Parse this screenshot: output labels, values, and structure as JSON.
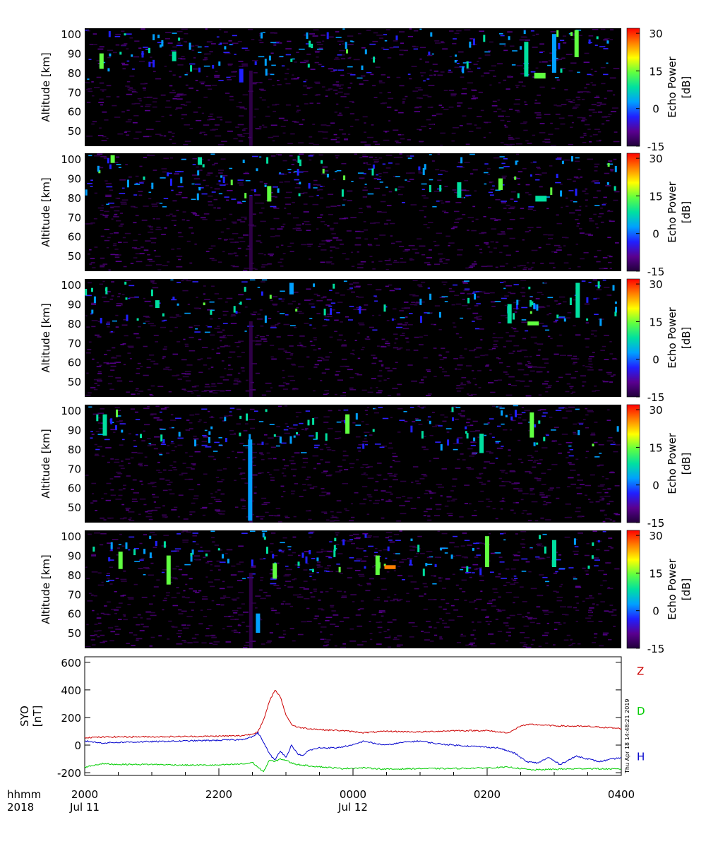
{
  "colorbar": {
    "ticks": [
      30,
      15,
      0,
      -15
    ],
    "range": [
      -15,
      32
    ],
    "label_line1": "Echo Power",
    "label_line2": "[dB]",
    "colors": [
      "#20003a",
      "#5a0090",
      "#2020ff",
      "#00a0ff",
      "#00e0a0",
      "#60ff40",
      "#ffff00",
      "#ff8000",
      "#ff0000"
    ]
  },
  "chart_data": [
    {
      "type": "heatmap",
      "ylabel": "Altitude  [km]",
      "yticks": [
        50,
        60,
        70,
        80,
        90,
        100
      ],
      "ylim": [
        42,
        103
      ],
      "xlim": [
        0,
        480
      ],
      "features": [
        {
          "t": 15,
          "alt": [
            82,
            90
          ],
          "db": 12
        },
        {
          "t": 80,
          "alt": [
            86,
            91
          ],
          "db": 8
        },
        {
          "t": 140,
          "alt": [
            75,
            82
          ],
          "db": -5
        },
        {
          "t": 395,
          "alt": [
            78,
            96
          ],
          "db": 8
        },
        {
          "t": 404,
          "alt": [
            77,
            80
          ],
          "db": 14
        },
        {
          "t": 420,
          "alt": [
            80,
            100
          ],
          "db": 5
        },
        {
          "t": 440,
          "alt": [
            88,
            102
          ],
          "db": 14
        }
      ]
    },
    {
      "type": "heatmap",
      "ylabel": "Altitude  [km]",
      "yticks": [
        50,
        60,
        70,
        80,
        90,
        100
      ],
      "ylim": [
        42,
        103
      ],
      "xlim": [
        0,
        480
      ],
      "features": [
        {
          "t": 25,
          "alt": [
            98,
            102
          ],
          "db": 12
        },
        {
          "t": 103,
          "alt": [
            97,
            101
          ],
          "db": 10
        },
        {
          "t": 165,
          "alt": [
            78,
            86
          ],
          "db": 15
        },
        {
          "t": 335,
          "alt": [
            80,
            88
          ],
          "db": 10
        },
        {
          "t": 372,
          "alt": [
            84,
            90
          ],
          "db": 12
        },
        {
          "t": 405,
          "alt": [
            78,
            81
          ],
          "db": 10
        }
      ]
    },
    {
      "type": "heatmap",
      "ylabel": "Altitude  [km]",
      "yticks": [
        50,
        60,
        70,
        80,
        90,
        100
      ],
      "ylim": [
        42,
        103
      ],
      "xlim": [
        0,
        480
      ],
      "features": [
        {
          "t": 65,
          "alt": [
            88,
            92
          ],
          "db": 6
        },
        {
          "t": 185,
          "alt": [
            95,
            101
          ],
          "db": 5
        },
        {
          "t": 380,
          "alt": [
            80,
            90
          ],
          "db": 6
        },
        {
          "t": 398,
          "alt": [
            79,
            81
          ],
          "db": 12
        },
        {
          "t": 441,
          "alt": [
            83,
            101
          ],
          "db": 10
        }
      ]
    },
    {
      "type": "heatmap",
      "ylabel": "Altitude  [km]",
      "yticks": [
        50,
        60,
        70,
        80,
        90,
        100
      ],
      "ylim": [
        42,
        103
      ],
      "xlim": [
        0,
        480
      ],
      "features": [
        {
          "t": 18,
          "alt": [
            87,
            98
          ],
          "db": 10
        },
        {
          "t": 148,
          "alt": [
            43,
            85
          ],
          "db": 2
        },
        {
          "t": 235,
          "alt": [
            88,
            98
          ],
          "db": 14
        },
        {
          "t": 355,
          "alt": [
            78,
            88
          ],
          "db": 10
        },
        {
          "t": 400,
          "alt": [
            86,
            99
          ],
          "db": 15
        }
      ]
    },
    {
      "type": "heatmap",
      "ylabel": "Altitude  [km]",
      "yticks": [
        50,
        60,
        70,
        80,
        90,
        100
      ],
      "ylim": [
        42,
        103
      ],
      "xlim": [
        0,
        480
      ],
      "features": [
        {
          "t": 32,
          "alt": [
            83,
            92
          ],
          "db": 14
        },
        {
          "t": 75,
          "alt": [
            75,
            90
          ],
          "db": 15
        },
        {
          "t": 155,
          "alt": [
            50,
            60
          ],
          "db": 3
        },
        {
          "t": 170,
          "alt": [
            78,
            86
          ],
          "db": 12
        },
        {
          "t": 262,
          "alt": [
            80,
            90
          ],
          "db": 12
        },
        {
          "t": 270,
          "alt": [
            83,
            85
          ],
          "db": 25
        },
        {
          "t": 360,
          "alt": [
            84,
            100
          ],
          "db": 12
        },
        {
          "t": 420,
          "alt": [
            84,
            98
          ],
          "db": 10
        }
      ]
    },
    {
      "type": "line",
      "ylabel_line1": "SYO",
      "ylabel_line2": "[nT]",
      "yticks": [
        600,
        400,
        200,
        0,
        -200
      ],
      "ylim": [
        -220,
        640
      ],
      "xlim": [
        0,
        480
      ],
      "xlabels": [
        {
          "t": 0,
          "hhmm": "2000",
          "date": "Jul 11"
        },
        {
          "t": 120,
          "hhmm": "2200",
          "date": ""
        },
        {
          "t": 240,
          "hhmm": "0000",
          "date": "Jul 12"
        },
        {
          "t": 360,
          "hhmm": "0200",
          "date": ""
        },
        {
          "t": 480,
          "hhmm": "0400",
          "date": ""
        }
      ],
      "series": [
        {
          "name": "Z",
          "color": "#cc0000",
          "label_y": 540,
          "points": [
            [
              0,
              55
            ],
            [
              30,
              60
            ],
            [
              60,
              60
            ],
            [
              90,
              62
            ],
            [
              120,
              65
            ],
            [
              140,
              68
            ],
            [
              150,
              80
            ],
            [
              155,
              100
            ],
            [
              160,
              180
            ],
            [
              165,
              310
            ],
            [
              170,
              400
            ],
            [
              175,
              350
            ],
            [
              180,
              220
            ],
            [
              185,
              150
            ],
            [
              190,
              130
            ],
            [
              200,
              120
            ],
            [
              215,
              110
            ],
            [
              230,
              105
            ],
            [
              250,
              90
            ],
            [
              270,
              100
            ],
            [
              300,
              95
            ],
            [
              330,
              105
            ],
            [
              360,
              105
            ],
            [
              370,
              95
            ],
            [
              380,
              90
            ],
            [
              390,
              140
            ],
            [
              400,
              150
            ],
            [
              420,
              140
            ],
            [
              450,
              135
            ],
            [
              480,
              120
            ]
          ]
        },
        {
          "name": "D",
          "color": "#00cc00",
          "label_y": 250,
          "points": [
            [
              0,
              -160
            ],
            [
              15,
              -135
            ],
            [
              30,
              -140
            ],
            [
              60,
              -140
            ],
            [
              90,
              -145
            ],
            [
              120,
              -145
            ],
            [
              145,
              -135
            ],
            [
              150,
              -125
            ],
            [
              155,
              -160
            ],
            [
              160,
              -195
            ],
            [
              165,
              -110
            ],
            [
              170,
              -120
            ],
            [
              175,
              -100
            ],
            [
              180,
              -110
            ],
            [
              185,
              -130
            ],
            [
              190,
              -140
            ],
            [
              200,
              -150
            ],
            [
              215,
              -160
            ],
            [
              230,
              -170
            ],
            [
              250,
              -165
            ],
            [
              270,
              -175
            ],
            [
              300,
              -170
            ],
            [
              330,
              -170
            ],
            [
              360,
              -165
            ],
            [
              380,
              -160
            ],
            [
              400,
              -180
            ],
            [
              420,
              -175
            ],
            [
              450,
              -170
            ],
            [
              480,
              -175
            ]
          ]
        },
        {
          "name": "H",
          "color": "#0000cc",
          "label_y": -80,
          "points": [
            [
              0,
              30
            ],
            [
              15,
              15
            ],
            [
              30,
              20
            ],
            [
              60,
              25
            ],
            [
              90,
              30
            ],
            [
              120,
              35
            ],
            [
              140,
              40
            ],
            [
              150,
              60
            ],
            [
              155,
              90
            ],
            [
              160,
              20
            ],
            [
              165,
              -60
            ],
            [
              170,
              -110
            ],
            [
              175,
              -40
            ],
            [
              180,
              -90
            ],
            [
              185,
              0
            ],
            [
              190,
              -60
            ],
            [
              195,
              -80
            ],
            [
              200,
              -40
            ],
            [
              210,
              -20
            ],
            [
              225,
              -20
            ],
            [
              240,
              0
            ],
            [
              250,
              30
            ],
            [
              260,
              10
            ],
            [
              270,
              0
            ],
            [
              285,
              20
            ],
            [
              300,
              30
            ],
            [
              315,
              10
            ],
            [
              330,
              0
            ],
            [
              350,
              -10
            ],
            [
              370,
              -20
            ],
            [
              385,
              -60
            ],
            [
              395,
              -120
            ],
            [
              405,
              -130
            ],
            [
              415,
              -90
            ],
            [
              425,
              -140
            ],
            [
              440,
              -80
            ],
            [
              460,
              -120
            ],
            [
              480,
              -90
            ]
          ]
        }
      ]
    }
  ],
  "xaxis": {
    "label_line1": "hhmm",
    "label_line2": "2018"
  },
  "timestamp": "Thu Apr 18 14:48:21 2019"
}
